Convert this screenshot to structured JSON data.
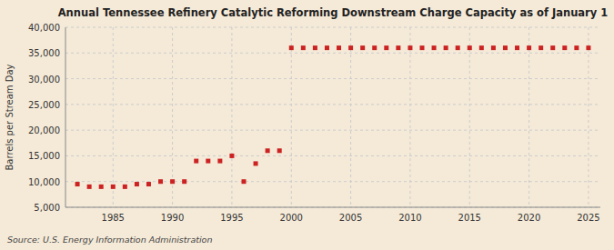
{
  "chart_data": {
    "type": "scatter",
    "title": "Annual Tennessee Refinery Catalytic Reforming Downstream Charge Capacity as of January 1",
    "ylabel": "Barrels per Stream Day",
    "annotations": [
      "Source: U.S. Energy Information Administration"
    ],
    "color": "#cc2222",
    "marker": "square",
    "grid": true,
    "x": [
      1982,
      1983,
      1984,
      1985,
      1986,
      1987,
      1988,
      1989,
      1990,
      1991,
      1992,
      1993,
      1994,
      1995,
      1996,
      1997,
      1998,
      1999,
      2000,
      2001,
      2002,
      2003,
      2004,
      2005,
      2006,
      2007,
      2008,
      2009,
      2010,
      2011,
      2012,
      2013,
      2014,
      2015,
      2016,
      2017,
      2018,
      2019,
      2020,
      2021,
      2022,
      2023,
      2024,
      2025
    ],
    "values": [
      9500,
      9000,
      9000,
      9000,
      9000,
      9500,
      9500,
      10000,
      10000,
      10000,
      14000,
      14000,
      14000,
      15000,
      10000,
      13500,
      16000,
      16000,
      36000,
      36000,
      36000,
      36000,
      36000,
      36000,
      36000,
      36000,
      36000,
      36000,
      36000,
      36000,
      36000,
      36000,
      36000,
      36000,
      36000,
      36000,
      36000,
      36000,
      36000,
      36000,
      36000,
      36000,
      36000,
      36000
    ],
    "xlim": [
      1981,
      2026
    ],
    "xticks": [
      1985,
      1990,
      1995,
      2000,
      2005,
      2010,
      2015,
      2020,
      2025
    ],
    "ylim": [
      5000,
      40000
    ],
    "yticks": [
      {
        "value": 5000,
        "label": "5,000"
      },
      {
        "value": 10000,
        "label": "10,000"
      },
      {
        "value": 15000,
        "label": "15,000"
      },
      {
        "value": 20000,
        "label": "20,000"
      },
      {
        "value": 25000,
        "label": "25,000"
      },
      {
        "value": 30000,
        "label": "30,000"
      },
      {
        "value": 35000,
        "label": "35,000"
      },
      {
        "value": 40000,
        "label": "40,000"
      }
    ]
  }
}
